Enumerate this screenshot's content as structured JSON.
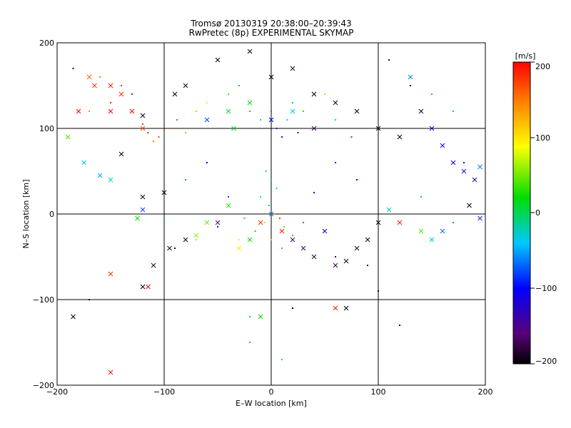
{
  "chart_data": {
    "type": "scatter",
    "title_line1": "Tromsø 20130319 20:38:00–20:39:43",
    "title_line2": "RwPretec (8p) EXPERIMENTAL SKYMAP",
    "xlabel": "E–W location [km]",
    "ylabel": "N–S location [km]",
    "xlim": [
      -200,
      200
    ],
    "ylim": [
      -200,
      200
    ],
    "xticks": [
      "−200",
      "−100",
      "0",
      "100",
      "200"
    ],
    "yticks": [
      "−200",
      "−100",
      "0",
      "100",
      "200"
    ],
    "grid": true,
    "colorbar": {
      "unit_label": "[m/s]",
      "range": [
        -200,
        200
      ],
      "ticks": [
        "200",
        "100",
        "0",
        "−100",
        "−200"
      ],
      "colormap": "rainbow (black → purple → blue → cyan → green → yellow → orange → red)"
    },
    "series": [
      {
        "marker": "dot",
        "points": [
          {
            "x": -120,
            "y": 105,
            "v": 180
          },
          {
            "x": -115,
            "y": 95,
            "v": 190
          },
          {
            "x": -105,
            "y": 90,
            "v": 170
          },
          {
            "x": -98,
            "y": 100,
            "v": 160
          },
          {
            "x": -110,
            "y": 85,
            "v": 150
          },
          {
            "x": -88,
            "y": 110,
            "v": 170
          },
          {
            "x": -80,
            "y": 95,
            "v": 130
          },
          {
            "x": -70,
            "y": 120,
            "v": 120
          },
          {
            "x": -60,
            "y": 130,
            "v": 100
          },
          {
            "x": -40,
            "y": 140,
            "v": 40
          },
          {
            "x": -30,
            "y": 150,
            "v": 20
          },
          {
            "x": -20,
            "y": 120,
            "v": 10
          },
          {
            "x": -10,
            "y": 110,
            "v": -20
          },
          {
            "x": 0,
            "y": 120,
            "v": -60
          },
          {
            "x": 5,
            "y": 100,
            "v": -90
          },
          {
            "x": 10,
            "y": 90,
            "v": -120
          },
          {
            "x": 15,
            "y": 110,
            "v": -30
          },
          {
            "x": 20,
            "y": 130,
            "v": 0
          },
          {
            "x": 25,
            "y": 95,
            "v": -150
          },
          {
            "x": 30,
            "y": 120,
            "v": 30
          },
          {
            "x": 40,
            "y": 100,
            "v": -10
          },
          {
            "x": 50,
            "y": 140,
            "v": 60
          },
          {
            "x": 60,
            "y": 110,
            "v": -40
          },
          {
            "x": 75,
            "y": 90,
            "v": -70
          },
          {
            "x": -5,
            "y": 50,
            "v": -30
          },
          {
            "x": 0,
            "y": 40,
            "v": -20
          },
          {
            "x": 5,
            "y": 30,
            "v": -40
          },
          {
            "x": -10,
            "y": 20,
            "v": -10
          },
          {
            "x": -2,
            "y": 10,
            "v": 0
          },
          {
            "x": 3,
            "y": 0,
            "v": 150
          },
          {
            "x": 8,
            "y": -5,
            "v": 180
          },
          {
            "x": -6,
            "y": -10,
            "v": 110
          },
          {
            "x": 12,
            "y": -15,
            "v": 40
          },
          {
            "x": -15,
            "y": -20,
            "v": 20
          },
          {
            "x": 0,
            "y": -30,
            "v": 60
          },
          {
            "x": 20,
            "y": -25,
            "v": 10
          },
          {
            "x": -25,
            "y": -5,
            "v": -20
          },
          {
            "x": 30,
            "y": -10,
            "v": -60
          },
          {
            "x": -30,
            "y": -30,
            "v": 80
          },
          {
            "x": 10,
            "y": -40,
            "v": 30
          },
          {
            "x": -40,
            "y": 20,
            "v": -80
          },
          {
            "x": 40,
            "y": 25,
            "v": -110
          },
          {
            "x": -50,
            "y": -15,
            "v": -150
          },
          {
            "x": 50,
            "y": -20,
            "v": -170
          },
          {
            "x": -60,
            "y": 60,
            "v": -100
          },
          {
            "x": 60,
            "y": 60,
            "v": -90
          },
          {
            "x": -80,
            "y": 40,
            "v": -60
          },
          {
            "x": 80,
            "y": 40,
            "v": -120
          },
          {
            "x": -140,
            "y": 150,
            "v": 170
          },
          {
            "x": -150,
            "y": 130,
            "v": 190
          },
          {
            "x": -160,
            "y": 160,
            "v": 150
          },
          {
            "x": -130,
            "y": 140,
            "v": 200
          },
          {
            "x": -170,
            "y": 120,
            "v": 140
          },
          {
            "x": -185,
            "y": 170,
            "v": -190
          },
          {
            "x": 110,
            "y": 180,
            "v": -180
          },
          {
            "x": 130,
            "y": 150,
            "v": -200
          },
          {
            "x": 150,
            "y": 140,
            "v": -50
          },
          {
            "x": 170,
            "y": 120,
            "v": -20
          },
          {
            "x": 160,
            "y": 80,
            "v": -90
          },
          {
            "x": 180,
            "y": 60,
            "v": -110
          },
          {
            "x": 190,
            "y": 40,
            "v": -130
          },
          {
            "x": 140,
            "y": 20,
            "v": 10
          },
          {
            "x": 170,
            "y": -10,
            "v": -60
          },
          {
            "x": 150,
            "y": -30,
            "v": -100
          },
          {
            "x": -90,
            "y": -40,
            "v": -190
          },
          {
            "x": -70,
            "y": -30,
            "v": 60
          },
          {
            "x": 90,
            "y": -60,
            "v": -200
          },
          {
            "x": 60,
            "y": -50,
            "v": -170
          },
          {
            "x": -20,
            "y": -120,
            "v": 20
          },
          {
            "x": 20,
            "y": -110,
            "v": -200
          },
          {
            "x": 10,
            "y": -170,
            "v": -20
          },
          {
            "x": -20,
            "y": -150,
            "v": 160
          },
          {
            "x": -170,
            "y": -100,
            "v": -190
          },
          {
            "x": 120,
            "y": -130,
            "v": -200
          },
          {
            "x": 100,
            "y": -90,
            "v": -190
          },
          {
            "x": -100,
            "y": -10,
            "v": -50
          }
        ]
      },
      {
        "marker": "cross",
        "points": [
          {
            "x": -150,
            "y": 150,
            "v": 190
          },
          {
            "x": -140,
            "y": 140,
            "v": 180
          },
          {
            "x": -130,
            "y": 120,
            "v": 200
          },
          {
            "x": -120,
            "y": 100,
            "v": 170
          },
          {
            "x": -170,
            "y": 160,
            "v": 160
          },
          {
            "x": -180,
            "y": 120,
            "v": 200
          },
          {
            "x": -190,
            "y": 90,
            "v": 40
          },
          {
            "x": -175,
            "y": 60,
            "v": -30
          },
          {
            "x": -160,
            "y": 45,
            "v": -50
          },
          {
            "x": -150,
            "y": 40,
            "v": -30
          },
          {
            "x": -140,
            "y": 70,
            "v": -200
          },
          {
            "x": -120,
            "y": 20,
            "v": -190
          },
          {
            "x": -125,
            "y": -5,
            "v": 20
          },
          {
            "x": -110,
            "y": -60,
            "v": -190
          },
          {
            "x": -120,
            "y": -85,
            "v": -200
          },
          {
            "x": -115,
            "y": -85,
            "v": 200
          },
          {
            "x": -150,
            "y": -70,
            "v": 180
          },
          {
            "x": -185,
            "y": -120,
            "v": -200
          },
          {
            "x": -150,
            "y": -185,
            "v": 190
          },
          {
            "x": -120,
            "y": 5,
            "v": -80
          },
          {
            "x": -95,
            "y": -40,
            "v": -190
          },
          {
            "x": -80,
            "y": -30,
            "v": -190
          },
          {
            "x": -70,
            "y": -25,
            "v": 60
          },
          {
            "x": -60,
            "y": -10,
            "v": 50
          },
          {
            "x": -50,
            "y": -10,
            "v": -160
          },
          {
            "x": -40,
            "y": 10,
            "v": 30
          },
          {
            "x": -30,
            "y": -40,
            "v": 100
          },
          {
            "x": -20,
            "y": -30,
            "v": 20
          },
          {
            "x": -10,
            "y": -10,
            "v": 180
          },
          {
            "x": 0,
            "y": 0,
            "v": -60
          },
          {
            "x": 10,
            "y": -20,
            "v": 190
          },
          {
            "x": 20,
            "y": -30,
            "v": -150
          },
          {
            "x": 30,
            "y": -40,
            "v": -170
          },
          {
            "x": 40,
            "y": -50,
            "v": -180
          },
          {
            "x": 50,
            "y": -20,
            "v": -120
          },
          {
            "x": 60,
            "y": -60,
            "v": -180
          },
          {
            "x": 70,
            "y": -55,
            "v": -190
          },
          {
            "x": 80,
            "y": -40,
            "v": -190
          },
          {
            "x": 90,
            "y": -30,
            "v": -190
          },
          {
            "x": 100,
            "y": -10,
            "v": -200
          },
          {
            "x": -90,
            "y": 140,
            "v": -200
          },
          {
            "x": -80,
            "y": 150,
            "v": -190
          },
          {
            "x": -50,
            "y": 180,
            "v": -200
          },
          {
            "x": -20,
            "y": 190,
            "v": -190
          },
          {
            "x": 0,
            "y": 160,
            "v": -200
          },
          {
            "x": 20,
            "y": 170,
            "v": -190
          },
          {
            "x": 40,
            "y": 140,
            "v": -200
          },
          {
            "x": 60,
            "y": 130,
            "v": -190
          },
          {
            "x": 80,
            "y": 120,
            "v": -200
          },
          {
            "x": 100,
            "y": 100,
            "v": -190
          },
          {
            "x": 120,
            "y": 90,
            "v": -200
          },
          {
            "x": 140,
            "y": 120,
            "v": -190
          },
          {
            "x": 130,
            "y": 160,
            "v": -60
          },
          {
            "x": 150,
            "y": 100,
            "v": -100
          },
          {
            "x": 160,
            "y": 80,
            "v": -120
          },
          {
            "x": 170,
            "y": 60,
            "v": -110
          },
          {
            "x": 180,
            "y": 50,
            "v": -130
          },
          {
            "x": 190,
            "y": 40,
            "v": -140
          },
          {
            "x": 195,
            "y": 55,
            "v": -60
          },
          {
            "x": 185,
            "y": 10,
            "v": -200
          },
          {
            "x": 195,
            "y": -5,
            "v": -90
          },
          {
            "x": 160,
            "y": -20,
            "v": -70
          },
          {
            "x": 150,
            "y": -30,
            "v": -40
          },
          {
            "x": 140,
            "y": -20,
            "v": 40
          },
          {
            "x": 120,
            "y": -10,
            "v": 190
          },
          {
            "x": 110,
            "y": 5,
            "v": -20
          },
          {
            "x": -60,
            "y": 110,
            "v": -80
          },
          {
            "x": -40,
            "y": 120,
            "v": 10
          },
          {
            "x": -20,
            "y": 130,
            "v": 20
          },
          {
            "x": 0,
            "y": 110,
            "v": -100
          },
          {
            "x": 20,
            "y": 120,
            "v": -30
          },
          {
            "x": 40,
            "y": 100,
            "v": -170
          },
          {
            "x": 60,
            "y": -110,
            "v": 190
          },
          {
            "x": 70,
            "y": -110,
            "v": -200
          },
          {
            "x": -10,
            "y": -120,
            "v": 20
          },
          {
            "x": -120,
            "y": 115,
            "v": -200
          },
          {
            "x": -100,
            "y": 25,
            "v": -200
          },
          {
            "x": -150,
            "y": 120,
            "v": 200
          },
          {
            "x": -165,
            "y": 150,
            "v": 180
          },
          {
            "x": -35,
            "y": 100,
            "v": 10
          }
        ]
      }
    ]
  }
}
